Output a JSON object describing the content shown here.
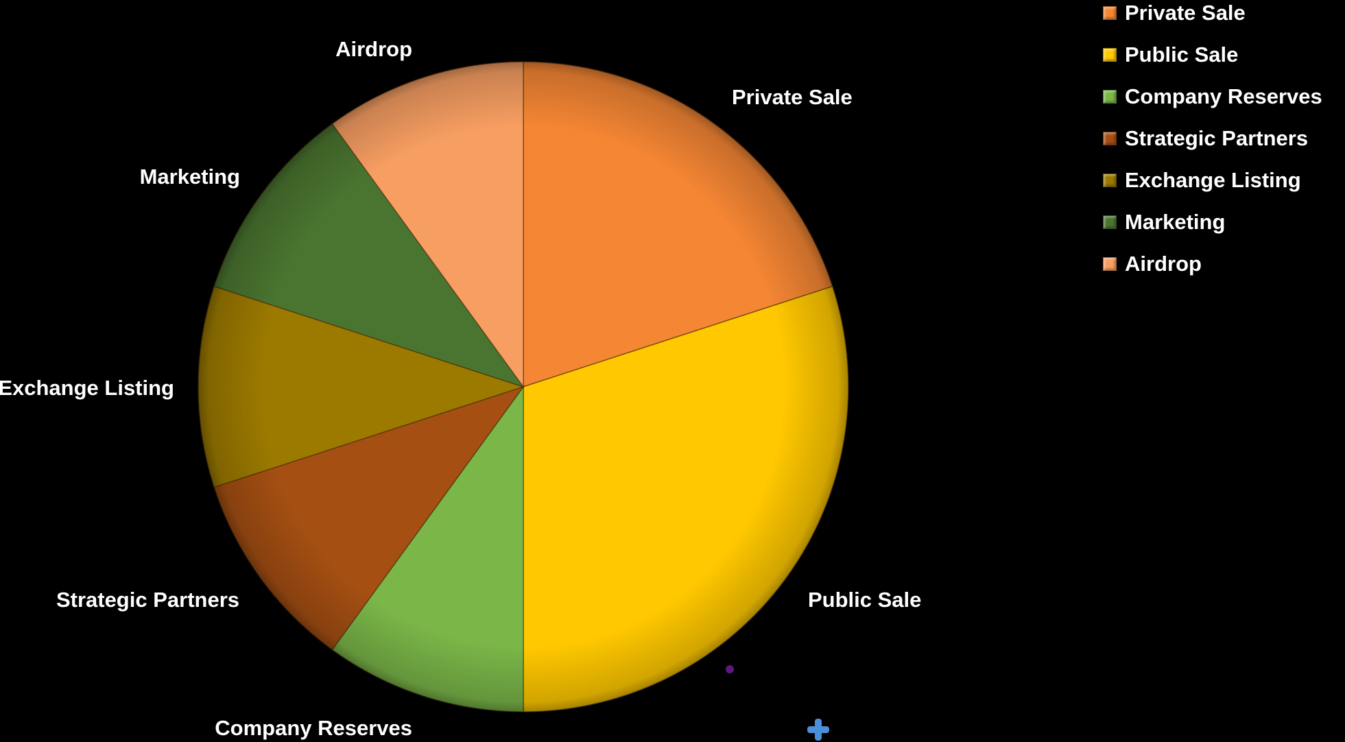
{
  "chart_data": {
    "type": "pie",
    "title": "",
    "start_angle_deg": 0,
    "direction": "clockwise",
    "slices": [
      {
        "label": "Private Sale",
        "value": 20,
        "color": "#F58634"
      },
      {
        "label": "Public Sale",
        "value": 30,
        "color": "#FFC800"
      },
      {
        "label": "Company Reserves",
        "value": 10,
        "color": "#7AB648"
      },
      {
        "label": "Strategic Partners",
        "value": 10,
        "color": "#A54F12"
      },
      {
        "label": "Exchange Listing",
        "value": 10,
        "color": "#9C7A00"
      },
      {
        "label": "Marketing",
        "value": 10,
        "color": "#4A7530"
      },
      {
        "label": "Airdrop",
        "value": 10,
        "color": "#F79E62"
      }
    ],
    "legend": {
      "position": "top-right",
      "entries": [
        "Private Sale",
        "Public Sale",
        "Company Reserves",
        "Strategic Partners",
        "Exchange Listing",
        "Marketing",
        "Airdrop"
      ]
    }
  }
}
